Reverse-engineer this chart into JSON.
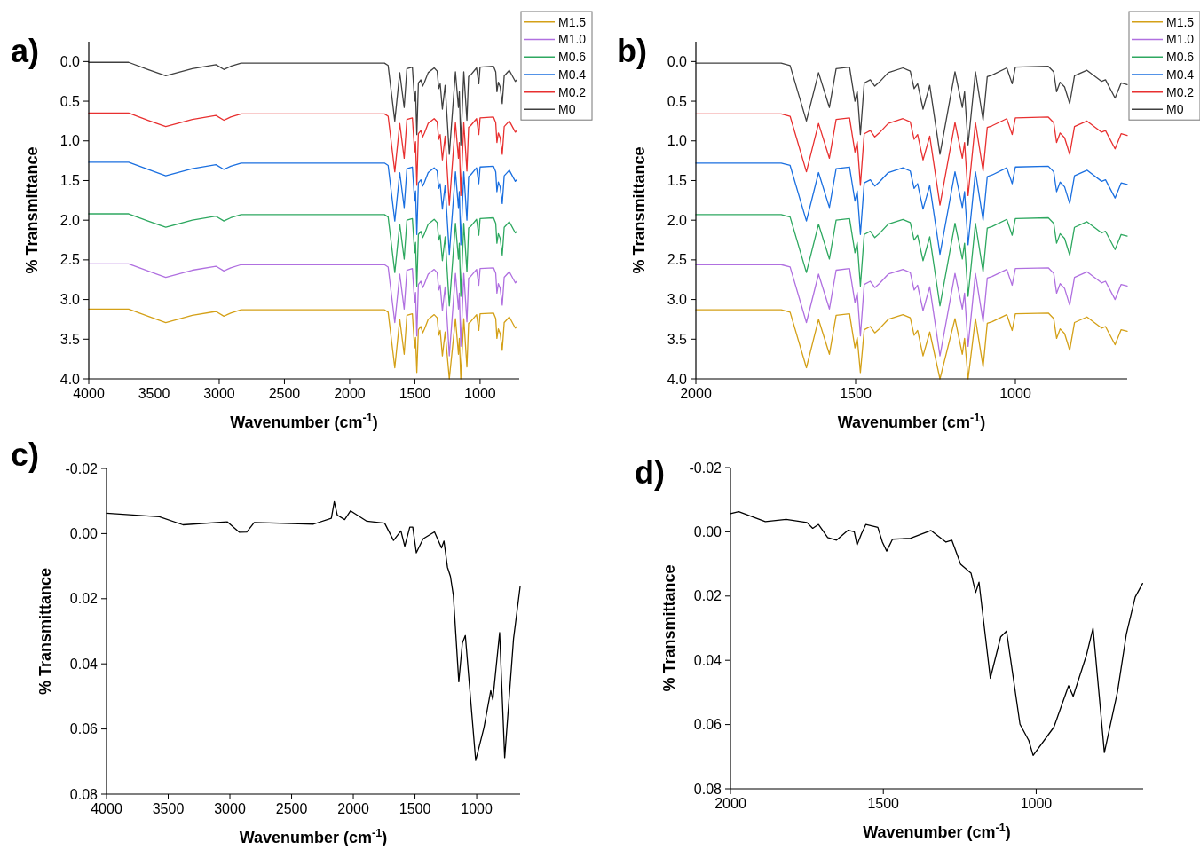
{
  "chart_data": [
    {
      "type": "line",
      "title": "a)",
      "xlabel": "Wavenumber (cm$^{-1}$)",
      "ylabel": "% Transmittance",
      "xlim": [
        4000,
        700
      ],
      "ylim": [
        4.0,
        -0.25
      ],
      "xticks": [
        4000,
        3500,
        3000,
        2500,
        2000,
        1500,
        1000
      ],
      "yticks": [
        {
          "value": 0,
          "label": "0.0"
        },
        {
          "value": 0.5,
          "label": "0.5"
        },
        {
          "value": 1,
          "label": "1.0"
        },
        {
          "value": 1.5,
          "label": "1.5"
        },
        {
          "value": 2,
          "label": "2.0"
        },
        {
          "value": 2.5,
          "label": "2.5"
        },
        {
          "value": 3,
          "label": "3.0"
        },
        {
          "value": 3.5,
          "label": "3.5"
        },
        {
          "value": 4,
          "label": "4.0"
        }
      ],
      "legend": "top right",
      "x": [
        4000,
        3694,
        3546,
        3410,
        3206,
        3025,
        2964,
        2912,
        2832,
        2400,
        2000,
        1850,
        1733,
        1705,
        1654,
        1616,
        1582,
        1561,
        1519,
        1502,
        1495,
        1485,
        1473,
        1454,
        1440,
        1426,
        1398,
        1352,
        1329,
        1317,
        1306,
        1289,
        1268,
        1236,
        1189,
        1166,
        1159,
        1148,
        1125,
        1101,
        1088,
        1073,
        1027,
        1010,
        1000,
        897,
        880,
        871,
        860,
        846,
        830,
        815,
        776,
        730,
        718
      ],
      "series": [
        {
          "name": "M1.5",
          "color": "#d4a017",
          "values": [
            3.12,
            3.12,
            3.21,
            3.29,
            3.2,
            3.15,
            3.21,
            3.17,
            3.13,
            3.13,
            3.13,
            3.13,
            3.13,
            3.16,
            3.86,
            3.25,
            3.69,
            3.2,
            3.18,
            3.61,
            3.48,
            3.92,
            3.38,
            3.34,
            3.42,
            3.37,
            3.25,
            3.19,
            3.23,
            3.45,
            3.39,
            3.71,
            3.41,
            4.0,
            3.24,
            3.69,
            3.49,
            4.0,
            3.24,
            3.85,
            3.3,
            3.28,
            3.19,
            3.39,
            3.18,
            3.17,
            3.24,
            3.49,
            3.37,
            3.43,
            3.64,
            3.29,
            3.22,
            3.36,
            3.34
          ]
        },
        {
          "name": "M1.0",
          "color": "#b070e0",
          "values": [
            2.55,
            2.55,
            2.64,
            2.72,
            2.63,
            2.58,
            2.64,
            2.6,
            2.56,
            2.56,
            2.56,
            2.56,
            2.56,
            2.59,
            3.29,
            2.68,
            3.12,
            2.63,
            2.61,
            3.04,
            2.91,
            3.46,
            2.81,
            2.77,
            2.85,
            2.8,
            2.68,
            2.62,
            2.66,
            2.88,
            2.82,
            3.14,
            2.84,
            3.71,
            2.67,
            3.12,
            2.92,
            3.59,
            2.67,
            3.28,
            2.73,
            2.71,
            2.62,
            2.82,
            2.61,
            2.6,
            2.67,
            2.92,
            2.8,
            2.86,
            3.07,
            2.72,
            2.65,
            2.79,
            2.77
          ]
        },
        {
          "name": "M0.6",
          "color": "#2ea860",
          "values": [
            1.92,
            1.92,
            2.01,
            2.09,
            2.0,
            1.95,
            2.01,
            1.97,
            1.93,
            1.93,
            1.93,
            1.93,
            1.93,
            1.96,
            2.66,
            2.05,
            2.49,
            2.0,
            1.98,
            2.41,
            2.28,
            2.83,
            2.18,
            2.14,
            2.22,
            2.17,
            2.05,
            1.99,
            2.03,
            2.25,
            2.19,
            2.51,
            2.21,
            3.08,
            2.04,
            2.49,
            2.29,
            2.96,
            2.04,
            2.65,
            2.1,
            2.08,
            1.99,
            2.19,
            1.98,
            1.97,
            2.04,
            2.29,
            2.17,
            2.23,
            2.44,
            2.09,
            2.02,
            2.16,
            2.14
          ]
        },
        {
          "name": "M0.4",
          "color": "#1a6fe0",
          "values": [
            1.27,
            1.27,
            1.36,
            1.44,
            1.35,
            1.3,
            1.36,
            1.32,
            1.28,
            1.28,
            1.28,
            1.28,
            1.28,
            1.31,
            2.01,
            1.4,
            1.84,
            1.35,
            1.33,
            1.76,
            1.63,
            2.18,
            1.53,
            1.49,
            1.57,
            1.52,
            1.4,
            1.34,
            1.38,
            1.6,
            1.54,
            1.86,
            1.56,
            2.43,
            1.39,
            1.84,
            1.64,
            2.31,
            1.39,
            2.0,
            1.45,
            1.43,
            1.34,
            1.54,
            1.33,
            1.32,
            1.39,
            1.64,
            1.52,
            1.58,
            1.79,
            1.44,
            1.37,
            1.51,
            1.49
          ]
        },
        {
          "name": "M0.2",
          "color": "#e83030",
          "values": [
            0.65,
            0.65,
            0.74,
            0.82,
            0.73,
            0.68,
            0.74,
            0.7,
            0.66,
            0.66,
            0.66,
            0.66,
            0.66,
            0.69,
            1.39,
            0.78,
            1.22,
            0.73,
            0.71,
            1.14,
            1.01,
            1.56,
            0.91,
            0.87,
            0.95,
            0.9,
            0.78,
            0.72,
            0.76,
            0.98,
            0.92,
            1.24,
            0.94,
            1.81,
            0.77,
            1.22,
            1.02,
            1.69,
            0.77,
            1.38,
            0.83,
            0.81,
            0.72,
            0.92,
            0.71,
            0.7,
            0.77,
            1.02,
            0.9,
            0.96,
            1.17,
            0.82,
            0.75,
            0.89,
            0.87
          ]
        },
        {
          "name": "M0",
          "color": "#404040",
          "values": [
            0.01,
            0.01,
            0.1,
            0.18,
            0.09,
            0.04,
            0.1,
            0.06,
            0.02,
            0.02,
            0.02,
            0.02,
            0.02,
            0.05,
            0.75,
            0.14,
            0.58,
            0.09,
            0.07,
            0.5,
            0.37,
            0.92,
            0.27,
            0.23,
            0.31,
            0.26,
            0.14,
            0.08,
            0.12,
            0.34,
            0.28,
            0.6,
            0.3,
            1.17,
            0.13,
            0.58,
            0.38,
            1.05,
            0.13,
            0.74,
            0.19,
            0.17,
            0.08,
            0.28,
            0.07,
            0.06,
            0.13,
            0.38,
            0.26,
            0.32,
            0.53,
            0.18,
            0.11,
            0.25,
            0.23
          ]
        }
      ]
    },
    {
      "type": "line",
      "title": "b)",
      "xlabel": "Wavenumber (cm$^{-1}$)",
      "ylabel": "% Transmittance",
      "xlim": [
        2000,
        650
      ],
      "ylim": [
        4.0,
        -0.25
      ],
      "xticks": [
        2000,
        1500,
        1000
      ],
      "yticks": [
        {
          "value": 0,
          "label": "0.0"
        },
        {
          "value": 0.5,
          "label": "0.5"
        },
        {
          "value": 1,
          "label": "1.0"
        },
        {
          "value": 1.5,
          "label": "1.5"
        },
        {
          "value": 2,
          "label": "2.0"
        },
        {
          "value": 2.5,
          "label": "2.5"
        },
        {
          "value": 3,
          "label": "3.0"
        },
        {
          "value": 3.5,
          "label": "3.5"
        },
        {
          "value": 4,
          "label": "4.0"
        }
      ],
      "legend": "top right",
      "x": [
        2000,
        1850,
        1733,
        1705,
        1654,
        1616,
        1582,
        1561,
        1519,
        1502,
        1495,
        1485,
        1473,
        1454,
        1440,
        1426,
        1398,
        1352,
        1329,
        1317,
        1306,
        1289,
        1268,
        1236,
        1189,
        1166,
        1159,
        1148,
        1125,
        1101,
        1088,
        1073,
        1027,
        1010,
        1000,
        897,
        880,
        871,
        860,
        846,
        830,
        815,
        776,
        730,
        718,
        688,
        669,
        650
      ],
      "series": [
        {
          "name": "M1.5",
          "color": "#d4a017",
          "values": [
            3.13,
            3.13,
            3.13,
            3.16,
            3.86,
            3.25,
            3.69,
            3.2,
            3.18,
            3.61,
            3.48,
            3.92,
            3.38,
            3.34,
            3.42,
            3.37,
            3.25,
            3.19,
            3.23,
            3.45,
            3.39,
            3.71,
            3.41,
            4.0,
            3.24,
            3.69,
            3.49,
            4.0,
            3.24,
            3.85,
            3.3,
            3.28,
            3.19,
            3.39,
            3.18,
            3.17,
            3.24,
            3.49,
            3.37,
            3.43,
            3.64,
            3.29,
            3.22,
            3.36,
            3.34,
            3.57,
            3.38,
            3.4
          ]
        },
        {
          "name": "M1.0",
          "color": "#b070e0",
          "values": [
            2.56,
            2.56,
            2.56,
            2.59,
            3.29,
            2.68,
            3.12,
            2.63,
            2.61,
            3.04,
            2.91,
            3.46,
            2.81,
            2.77,
            2.85,
            2.8,
            2.68,
            2.62,
            2.66,
            2.88,
            2.82,
            3.14,
            2.84,
            3.71,
            2.67,
            3.12,
            2.92,
            3.59,
            2.67,
            3.28,
            2.73,
            2.71,
            2.62,
            2.82,
            2.61,
            2.6,
            2.67,
            2.92,
            2.8,
            2.86,
            3.07,
            2.72,
            2.65,
            2.79,
            2.77,
            3.0,
            2.81,
            2.83
          ]
        },
        {
          "name": "M0.6",
          "color": "#2ea860",
          "values": [
            1.93,
            1.93,
            1.93,
            1.96,
            2.66,
            2.05,
            2.49,
            2.0,
            1.98,
            2.41,
            2.28,
            2.83,
            2.18,
            2.14,
            2.22,
            2.17,
            2.05,
            1.99,
            2.03,
            2.25,
            2.19,
            2.51,
            2.21,
            3.08,
            2.04,
            2.49,
            2.29,
            2.96,
            2.04,
            2.65,
            2.1,
            2.08,
            1.99,
            2.19,
            1.98,
            1.97,
            2.04,
            2.29,
            2.17,
            2.23,
            2.44,
            2.09,
            2.02,
            2.16,
            2.14,
            2.37,
            2.18,
            2.2
          ]
        },
        {
          "name": "M0.4",
          "color": "#1a6fe0",
          "values": [
            1.28,
            1.28,
            1.28,
            1.31,
            2.01,
            1.4,
            1.84,
            1.35,
            1.33,
            1.76,
            1.63,
            2.18,
            1.53,
            1.49,
            1.57,
            1.52,
            1.4,
            1.34,
            1.38,
            1.6,
            1.54,
            1.86,
            1.56,
            2.43,
            1.39,
            1.84,
            1.64,
            2.31,
            1.39,
            2.0,
            1.45,
            1.43,
            1.34,
            1.54,
            1.33,
            1.32,
            1.39,
            1.64,
            1.52,
            1.58,
            1.79,
            1.44,
            1.37,
            1.51,
            1.49,
            1.72,
            1.53,
            1.55
          ]
        },
        {
          "name": "M0.2",
          "color": "#e83030",
          "values": [
            0.66,
            0.66,
            0.66,
            0.69,
            1.39,
            0.78,
            1.22,
            0.73,
            0.71,
            1.14,
            1.01,
            1.56,
            0.91,
            0.87,
            0.95,
            0.9,
            0.78,
            0.72,
            0.76,
            0.98,
            0.92,
            1.24,
            0.94,
            1.81,
            0.77,
            1.22,
            1.02,
            1.69,
            0.77,
            1.38,
            0.83,
            0.81,
            0.72,
            0.92,
            0.71,
            0.7,
            0.77,
            1.02,
            0.9,
            0.96,
            1.17,
            0.82,
            0.75,
            0.89,
            0.87,
            1.1,
            0.91,
            0.93
          ]
        },
        {
          "name": "M0",
          "color": "#404040",
          "values": [
            0.02,
            0.02,
            0.02,
            0.05,
            0.75,
            0.14,
            0.58,
            0.09,
            0.07,
            0.5,
            0.37,
            0.92,
            0.27,
            0.23,
            0.31,
            0.26,
            0.14,
            0.08,
            0.12,
            0.34,
            0.28,
            0.6,
            0.3,
            1.17,
            0.13,
            0.58,
            0.38,
            1.05,
            0.13,
            0.74,
            0.19,
            0.17,
            0.08,
            0.28,
            0.07,
            0.06,
            0.13,
            0.38,
            0.26,
            0.32,
            0.53,
            0.18,
            0.11,
            0.25,
            0.23,
            0.46,
            0.27,
            0.29
          ]
        }
      ]
    },
    {
      "type": "line",
      "title": "c)",
      "xlabel": "Wavenumber (cm$^{-1}$)",
      "ylabel": "% Transmittance",
      "xlim": [
        4000,
        648
      ],
      "ylim": [
        0.08,
        -0.02
      ],
      "xticks": [
        4000,
        3500,
        3000,
        2500,
        2000,
        1500,
        1000
      ],
      "yticks": [
        {
          "value": -0.02,
          "label": "-0.02"
        },
        {
          "value": 0,
          "label": "0.00"
        },
        {
          "value": 0.02,
          "label": "0.02"
        },
        {
          "value": 0.04,
          "label": "0.04"
        },
        {
          "value": 0.06,
          "label": "0.06"
        },
        {
          "value": 0.08,
          "label": "0.08"
        }
      ],
      "x": [
        4000,
        3572,
        3380,
        3020,
        2923,
        2863,
        2803,
        2323,
        2178,
        2154,
        2130,
        2070,
        2022,
        1890,
        1746,
        1674,
        1614,
        1583,
        1542,
        1518,
        1489,
        1434,
        1342,
        1285,
        1265,
        1237,
        1213,
        1189,
        1145,
        1116,
        1092,
        1008,
        941,
        886,
        869,
        814,
        773,
        701,
        648
      ],
      "series": [
        {
          "color": "#000000",
          "values": [
            -0.0063,
            -0.0052,
            -0.0027,
            -0.0036,
            -0.0004,
            -0.0005,
            -0.0034,
            -0.0029,
            -0.0047,
            -0.0098,
            -0.0057,
            -0.0043,
            -0.007,
            -0.0038,
            -0.0032,
            0.0021,
            -0.0008,
            0.0039,
            -0.002,
            -0.002,
            0.0059,
            0.0016,
            -0.0005,
            0.0044,
            0.0023,
            0.0103,
            0.0131,
            0.019,
            0.0455,
            0.0336,
            0.0313,
            0.0697,
            0.0596,
            0.0482,
            0.051,
            0.0304,
            0.0688,
            0.0322,
            0.0163
          ]
        }
      ]
    },
    {
      "type": "line",
      "title": "d)",
      "xlabel": "Wavenumber (cm$^{-1}$)",
      "ylabel": "% Transmittance",
      "xlim": [
        2000,
        650
      ],
      "ylim": [
        0.08,
        -0.02
      ],
      "xticks": [
        2000,
        1500,
        1000
      ],
      "yticks": [
        {
          "value": -0.02,
          "label": "-0.02"
        },
        {
          "value": 0,
          "label": "0.00"
        },
        {
          "value": 0.02,
          "label": "0.02"
        },
        {
          "value": 0.04,
          "label": "0.04"
        },
        {
          "value": 0.06,
          "label": "0.06"
        },
        {
          "value": 0.08,
          "label": "0.08"
        }
      ],
      "x": [
        2000,
        1973,
        1886,
        1818,
        1750,
        1731,
        1712,
        1682,
        1653,
        1615,
        1595,
        1586,
        1571,
        1557,
        1518,
        1503,
        1489,
        1470,
        1411,
        1344,
        1295,
        1276,
        1247,
        1213,
        1198,
        1187,
        1150,
        1116,
        1097,
        1053,
        1024,
        1010,
        942,
        894,
        879,
        835,
        814,
        777,
        734,
        705,
        676,
        652
      ],
      "series": [
        {
          "color": "#000000",
          "values": [
            -0.0057,
            -0.0063,
            -0.0032,
            -0.0039,
            -0.0029,
            -0.0011,
            -0.0023,
            0.0018,
            0.0026,
            -0.0005,
            0.0,
            0.0041,
            0.0005,
            -0.0023,
            -0.0014,
            0.0032,
            0.006,
            0.0023,
            0.002,
            -0.0004,
            0.0032,
            0.0026,
            0.0101,
            0.0129,
            0.0189,
            0.0157,
            0.0456,
            0.0327,
            0.0309,
            0.0599,
            0.065,
            0.0696,
            0.0608,
            0.0479,
            0.0512,
            0.0382,
            0.03,
            0.0687,
            0.0498,
            0.0318,
            0.0203,
            0.0161
          ]
        }
      ]
    }
  ]
}
